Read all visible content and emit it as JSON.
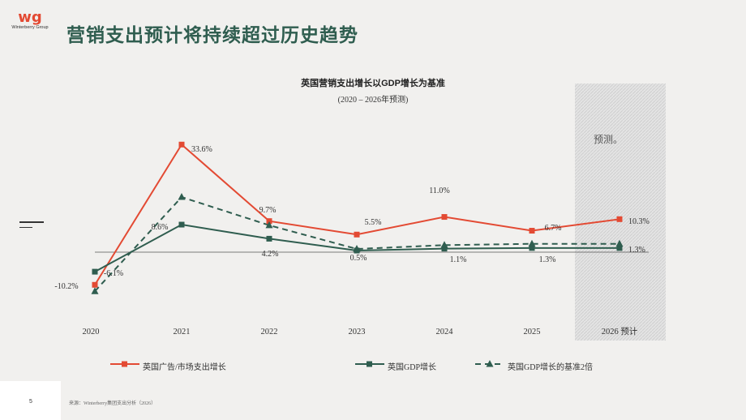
{
  "logo": {
    "mark": "wg",
    "brand": "Winterberry Group"
  },
  "page_title": "营销支出预计将持续超过历史趋势",
  "footer": {
    "page_number": "5",
    "source": "来源：Winterberry集团支出分析（2026）"
  },
  "colors": {
    "red": "#e34a33",
    "green": "#2f5d4f",
    "title": "#2f5d4f"
  },
  "chart_data": {
    "type": "line",
    "title": "英国营销支出增长以GDP增长为基准",
    "subtitle": "(2020 – 2026年预测)",
    "categories": [
      "2020",
      "2021",
      "2022",
      "2023",
      "2024",
      "2025",
      "2026 预计"
    ],
    "forecast_label": "预测。",
    "series": [
      {
        "name": "英国广告/市场支出增长",
        "style": "solid",
        "marker": "square",
        "color": "#e34a33",
        "values": [
          -10.2,
          33.6,
          9.7,
          5.5,
          11.0,
          6.7,
          10.3
        ],
        "labels": [
          "-10.2%",
          "33.6%",
          "9.7%",
          "5.5%",
          "11.0%",
          "6.7%",
          "10.3%"
        ]
      },
      {
        "name": "英国GDP增长",
        "style": "solid",
        "marker": "square",
        "color": "#2f5d4f",
        "values": [
          -6.1,
          8.6,
          4.2,
          0.5,
          1.1,
          1.3,
          1.3
        ],
        "labels": [
          "-6.1%",
          "8.6%",
          "4.2%",
          "0.5%",
          "1.1%",
          "1.3%",
          "1.3%"
        ]
      },
      {
        "name": "英国GDP增长的基准2倍",
        "style": "dashed",
        "marker": "triangle",
        "color": "#2f5d4f",
        "values": [
          -12.2,
          17.2,
          8.4,
          1.0,
          2.2,
          2.6,
          2.6
        ]
      }
    ]
  }
}
